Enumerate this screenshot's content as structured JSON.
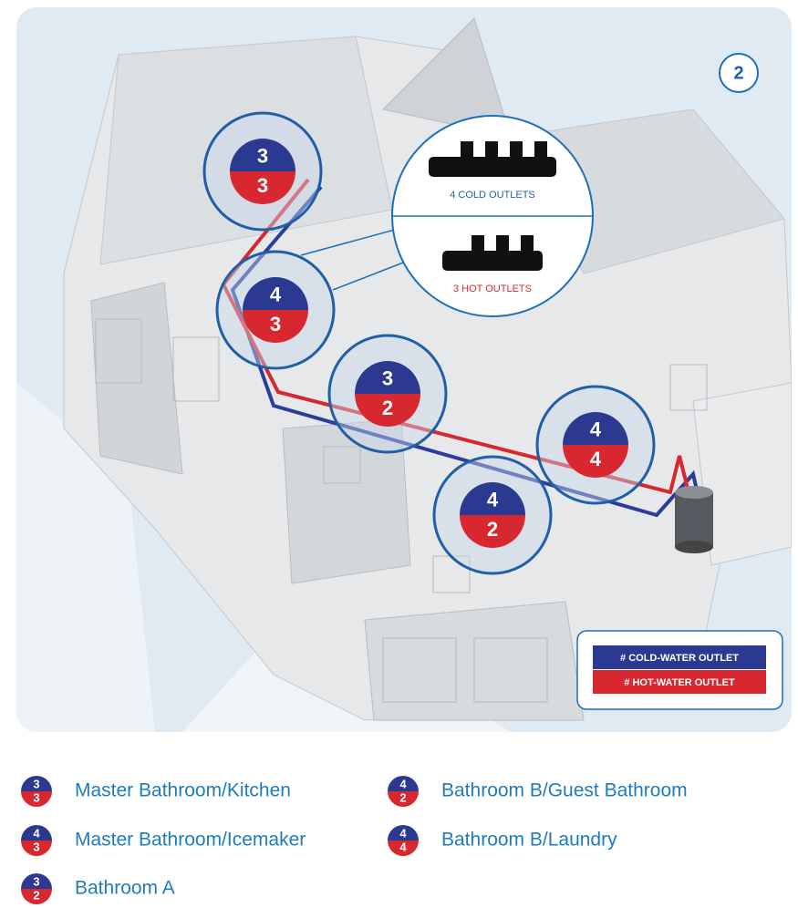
{
  "step": "2",
  "manifold": {
    "cold": "4 COLD OUTLETS",
    "hot": "3 HOT OUTLETS"
  },
  "key": {
    "cold": "# COLD-WATER OUTLET",
    "hot": "# HOT-WATER OUTLET"
  },
  "zones": [
    {
      "label": "Master Bathroom/Kitchen",
      "cold": "3",
      "hot": "3"
    },
    {
      "label": "Master Bathroom/Icemaker",
      "cold": "4",
      "hot": "3"
    },
    {
      "label": "Bathroom A",
      "cold": "3",
      "hot": "2"
    },
    {
      "label": "Bathroom B/Guest Bathroom",
      "cold": "4",
      "hot": "2"
    },
    {
      "label": "Bathroom B/Laundry",
      "cold": "4",
      "hot": "4"
    }
  ]
}
